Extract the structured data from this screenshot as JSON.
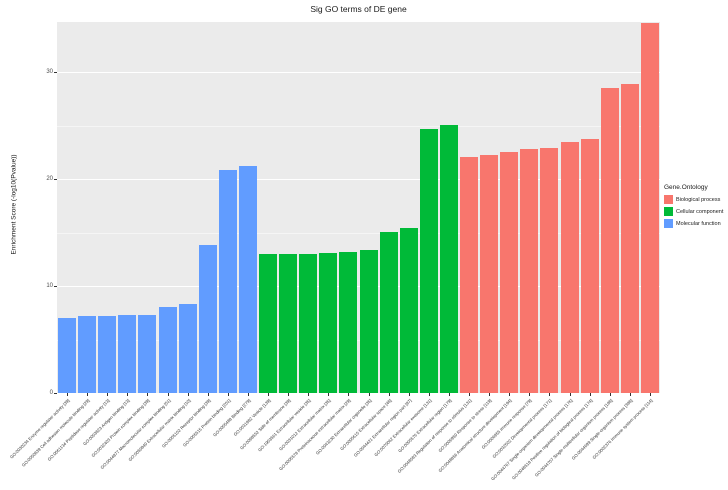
{
  "figure": {
    "title": "Sig GO terms of DE gene",
    "y_axis_label": "Enrichment Score (-log10(Pvalue))",
    "legend": {
      "title": "Gene.Ontology",
      "items": [
        {
          "label": "Biological process",
          "color": "#F8766D"
        },
        {
          "label": "Cellular component",
          "color": "#00BA38"
        },
        {
          "label": "Molecular function",
          "color": "#619CFF"
        }
      ]
    }
  },
  "chart_data": {
    "type": "bar",
    "title": "Sig GO terms of DE gene",
    "xlabel": "",
    "ylabel": "Enrichment Score (-log10(Pvalue))",
    "ylim": [
      0,
      34.7
    ],
    "y_ticks": [
      0,
      10,
      20,
      30
    ],
    "y_minor_gridlines": [
      5,
      15,
      25
    ],
    "grid": true,
    "legend_position": "right",
    "groups": [
      "Molecular function",
      "Cellular component",
      "Biological process"
    ],
    "group_colors": {
      "Biological process": "#F8766D",
      "Cellular component": "#00BA38",
      "Molecular function": "#619CFF"
    },
    "bars": [
      {
        "label": "GO:0030234 Enzyme regulator activity [39]",
        "value": 7.0,
        "group": "Molecular function"
      },
      {
        "label": "GO:0050839 Cell adhesion molecule binding [29]",
        "value": 7.2,
        "group": "Molecular function"
      },
      {
        "label": "GO:0061134 Peptidase regulator activity [13]",
        "value": 7.2,
        "group": "Molecular function"
      },
      {
        "label": "GO:0003823 Antigen binding [13]",
        "value": 7.3,
        "group": "Molecular function"
      },
      {
        "label": "GO:0032403 Protein complex binding [39]",
        "value": 7.3,
        "group": "Molecular function"
      },
      {
        "label": "GO:0044877 Macromolecular complex binding [51]",
        "value": 8.0,
        "group": "Molecular function"
      },
      {
        "label": "GO:0050840 Extracellular matrix binding [10]",
        "value": 8.3,
        "group": "Molecular function"
      },
      {
        "label": "GO:0005102 Receptor binding [39]",
        "value": 13.8,
        "group": "Molecular function"
      },
      {
        "label": "GO:0005515 Protein binding [201]",
        "value": 20.9,
        "group": "Molecular function"
      },
      {
        "label": "GO:0005488 Binding [279]",
        "value": 21.2,
        "group": "Molecular function"
      },
      {
        "label": "GO:0031982 Vesicle [139]",
        "value": 13.0,
        "group": "Cellular component"
      },
      {
        "label": "GO:0098552 Side of membrane [39]",
        "value": 13.0,
        "group": "Cellular component"
      },
      {
        "label": "GO:1903561 Extracellular vesicle [35]",
        "value": 13.0,
        "group": "Cellular component"
      },
      {
        "label": "GO:0031012 Extracellular matrix [35]",
        "value": 13.1,
        "group": "Cellular component"
      },
      {
        "label": "GO:0005578 Proteinaceous extracellular matrix [29]",
        "value": 13.2,
        "group": "Cellular component"
      },
      {
        "label": "GO:0043230 Extracellular organelle [35]",
        "value": 13.4,
        "group": "Cellular component"
      },
      {
        "label": "GO:0005615 Extracellular space [48]",
        "value": 15.1,
        "group": "Cellular component"
      },
      {
        "label": "GO:0044421 Extracellular region part [87]",
        "value": 15.4,
        "group": "Cellular component"
      },
      {
        "label": "GO:0070062 Extracellular exosome [131]",
        "value": 24.7,
        "group": "Cellular component"
      },
      {
        "label": "GO:0005576 Extracellular region [179]",
        "value": 25.1,
        "group": "Cellular component"
      },
      {
        "label": "GO:0048583 Regulation of response to stimulus [131]",
        "value": 22.1,
        "group": "Biological process"
      },
      {
        "label": "GO:0006950 Response to stress [119]",
        "value": 22.3,
        "group": "Biological process"
      },
      {
        "label": "GO:0048856 Anatomical structure development [194]",
        "value": 22.5,
        "group": "Biological process"
      },
      {
        "label": "GO:0006955 Immune response [79]",
        "value": 22.8,
        "group": "Biological process"
      },
      {
        "label": "GO:0032502 Developmental process [171]",
        "value": 22.9,
        "group": "Biological process"
      },
      {
        "label": "GO:0044767 Single-organism developmental process [176]",
        "value": 23.5,
        "group": "Biological process"
      },
      {
        "label": "GO:0048518 Positive regulation of biological process [174]",
        "value": 23.8,
        "group": "Biological process"
      },
      {
        "label": "GO:0044707 Single-multicellular organism process [188]",
        "value": 28.5,
        "group": "Biological process"
      },
      {
        "label": "GO:0044699 Single-organism process [388]",
        "value": 28.9,
        "group": "Biological process"
      },
      {
        "label": "GO:0002376 Immune system process [114]",
        "value": 34.6,
        "group": "Biological process"
      }
    ]
  }
}
